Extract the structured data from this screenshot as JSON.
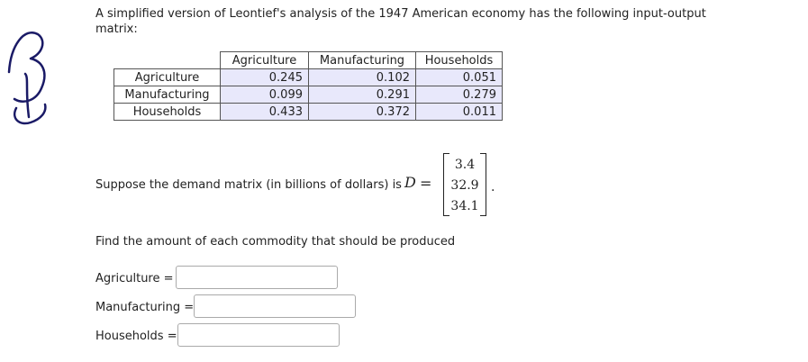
{
  "problem": {
    "statement": "A simplified version of Leontief's analysis of the 1947 American economy has the following input-output matrix:"
  },
  "matrix": {
    "columns": [
      "Agriculture",
      "Manufacturing",
      "Households"
    ],
    "rows": [
      {
        "label": "Agriculture",
        "values": [
          "0.245",
          "0.102",
          "0.051"
        ]
      },
      {
        "label": "Manufacturing",
        "values": [
          "0.099",
          "0.291",
          "0.279"
        ]
      },
      {
        "label": "Households",
        "values": [
          "0.433",
          "0.372",
          "0.011"
        ]
      }
    ]
  },
  "demand": {
    "text": "Suppose the demand matrix (in billions of dollars) is",
    "variable": "D",
    "equals": "=",
    "values": [
      "3.4",
      "32.9",
      "34.1"
    ],
    "period": "."
  },
  "question": "Find the amount of each commodity that should be produced",
  "answers": [
    {
      "label": "Agriculture =",
      "value": ""
    },
    {
      "label": "Manufacturing =",
      "value": ""
    },
    {
      "label": "Households =",
      "value": ""
    }
  ]
}
